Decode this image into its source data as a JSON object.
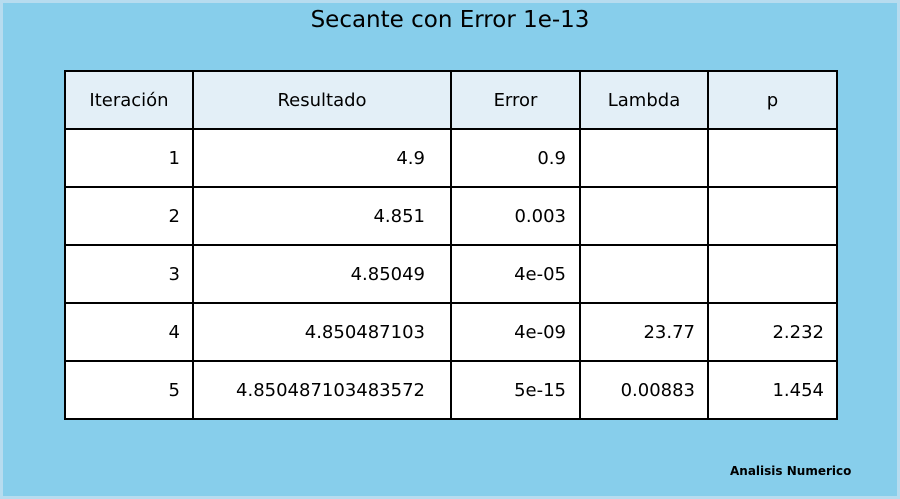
{
  "chart_data": {
    "type": "table",
    "title": "Secante con Error 1e-13",
    "columns": [
      "Iteración",
      "Resultado",
      "Error",
      "Lambda",
      "p"
    ],
    "rows": [
      [
        "1",
        "4.9",
        "0.9",
        "",
        ""
      ],
      [
        "2",
        "4.851",
        "0.003",
        "",
        ""
      ],
      [
        "3",
        "4.85049",
        "4e-05",
        "",
        ""
      ],
      [
        "4",
        "4.850487103",
        "4e-09",
        "23.77",
        "2.232"
      ],
      [
        "5",
        "4.850487103483572",
        "5e-15",
        "0.00883",
        "1.454"
      ]
    ]
  },
  "footer": "Analisis Numerico",
  "colors": {
    "background": "#87ceeb",
    "header_fill": "#e3eff7",
    "cell_fill": "#ffffff",
    "border": "#000000"
  }
}
